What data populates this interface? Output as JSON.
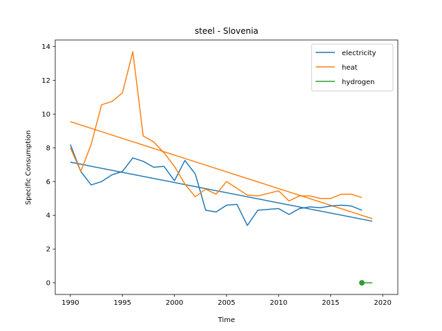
{
  "chart_data": {
    "type": "line",
    "title": "steel - Slovenia",
    "xlabel": "Time",
    "ylabel": "Specific Consumption",
    "xlim": [
      1988.55,
      2021.45
    ],
    "ylim": [
      -0.69,
      14.39
    ],
    "xticks": [
      1990,
      1995,
      2000,
      2005,
      2010,
      2015,
      2020
    ],
    "yticks": [
      0,
      2,
      4,
      6,
      8,
      10,
      12,
      14
    ],
    "grid": false,
    "legend": "top-right",
    "series": [
      {
        "name": "electricity",
        "color": "#1f77b4",
        "x": [
          1990,
          1991,
          1992,
          1993,
          1994,
          1995,
          1996,
          1997,
          1998,
          1999,
          2000,
          2001,
          2002,
          2003,
          2004,
          2005,
          2006,
          2007,
          2008,
          2009,
          2010,
          2011,
          2012,
          2013,
          2014,
          2015,
          2016,
          2017,
          2018
        ],
        "y": [
          8.2,
          6.6,
          5.8,
          6.0,
          6.4,
          6.6,
          7.4,
          7.2,
          6.85,
          6.9,
          6.05,
          7.25,
          6.45,
          4.3,
          4.2,
          4.6,
          4.65,
          3.4,
          4.3,
          4.35,
          4.4,
          4.05,
          4.4,
          4.5,
          4.45,
          4.55,
          4.6,
          4.55,
          4.3
        ]
      },
      {
        "name": "heat",
        "color": "#ff7f0e",
        "x": [
          1990,
          1991,
          1992,
          1993,
          1994,
          1995,
          1996,
          1997,
          1998,
          1999,
          2000,
          2001,
          2002,
          2003,
          2004,
          2005,
          2006,
          2007,
          2008,
          2009,
          2010,
          2011,
          2012,
          2013,
          2014,
          2015,
          2016,
          2017,
          2018
        ],
        "y": [
          8.0,
          6.6,
          8.2,
          10.55,
          10.75,
          11.25,
          13.7,
          8.7,
          8.35,
          7.7,
          6.9,
          5.85,
          5.1,
          5.55,
          5.25,
          6.0,
          5.6,
          5.2,
          5.15,
          5.3,
          5.45,
          4.85,
          5.15,
          5.15,
          5.0,
          5.0,
          5.25,
          5.25,
          5.05
        ]
      },
      {
        "name": "hydrogen",
        "color": "#2ca02c",
        "x": [
          2018,
          2019
        ],
        "y": [
          0,
          0
        ]
      }
    ],
    "trendlines": [
      {
        "series": "electricity",
        "color": "#1f77b4",
        "x": [
          1990,
          2019
        ],
        "y": [
          7.15,
          3.65
        ]
      },
      {
        "series": "heat",
        "color": "#ff7f0e",
        "x": [
          1990,
          2019
        ],
        "y": [
          9.55,
          3.8
        ]
      }
    ]
  }
}
